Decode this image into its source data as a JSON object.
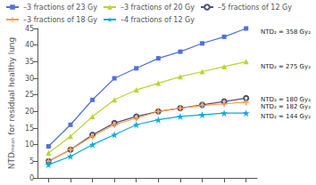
{
  "chart_data": {
    "type": "line",
    "ylabel": "NTDₘₑₐₙ for residual healthy lung",
    "x": [
      0.05,
      0.15,
      0.25,
      0.35,
      0.45,
      0.55,
      0.65,
      0.75,
      0.85,
      0.95
    ],
    "series": [
      {
        "name": "–3 fractions of 23 Gy",
        "marker": "square",
        "values": [
          9.5,
          16.0,
          23.5,
          30.0,
          33.0,
          36.0,
          38.0,
          40.5,
          42.5,
          45.0
        ]
      },
      {
        "name": "–3 fractions of 20 Gy",
        "marker": "triangle",
        "values": [
          7.5,
          12.5,
          18.5,
          23.5,
          26.5,
          28.5,
          30.5,
          32.0,
          33.5,
          35.0
        ]
      },
      {
        "name": "–5 fractions of 12 Gy",
        "marker": "open_circle",
        "values": [
          5.0,
          8.5,
          13.0,
          16.5,
          18.5,
          20.0,
          21.0,
          22.0,
          23.0,
          24.0
        ]
      },
      {
        "name": "–3 fractions of 18 Gy",
        "marker": "plus",
        "values": [
          5.0,
          8.5,
          12.5,
          16.0,
          18.0,
          20.0,
          21.0,
          21.8,
          22.3,
          22.8
        ]
      },
      {
        "name": "–4 fractions of 12 Gy",
        "marker": "star",
        "values": [
          4.0,
          6.5,
          10.0,
          13.0,
          16.0,
          17.5,
          18.5,
          19.0,
          19.5,
          19.5
        ]
      }
    ],
    "xlim": [
      0.0,
      1.0
    ],
    "xticks": [
      0.05,
      0.15,
      0.25,
      0.35,
      0.45,
      0.55,
      0.65,
      0.75,
      0.85,
      0.95
    ],
    "ylim": [
      0,
      45
    ],
    "yticks": [
      0,
      5,
      10,
      15,
      20,
      25,
      30,
      35,
      40,
      45
    ],
    "tick_labels": "y",
    "grid": false,
    "legend": "upper left",
    "annotations": [
      {
        "text": "NTD₂ = 358 Gy₂",
        "y": 44.0
      },
      {
        "text": "NTD₂ = 275 Gy₂",
        "y": 33.5
      },
      {
        "text": "NTD₂ = 180 Gy₂",
        "y": 23.5
      },
      {
        "text": "NTD₂ = 182 Gy₂",
        "y": 21.5
      },
      {
        "text": "NTD₂ = 144 Gy₂",
        "y": 18.5
      }
    ]
  }
}
